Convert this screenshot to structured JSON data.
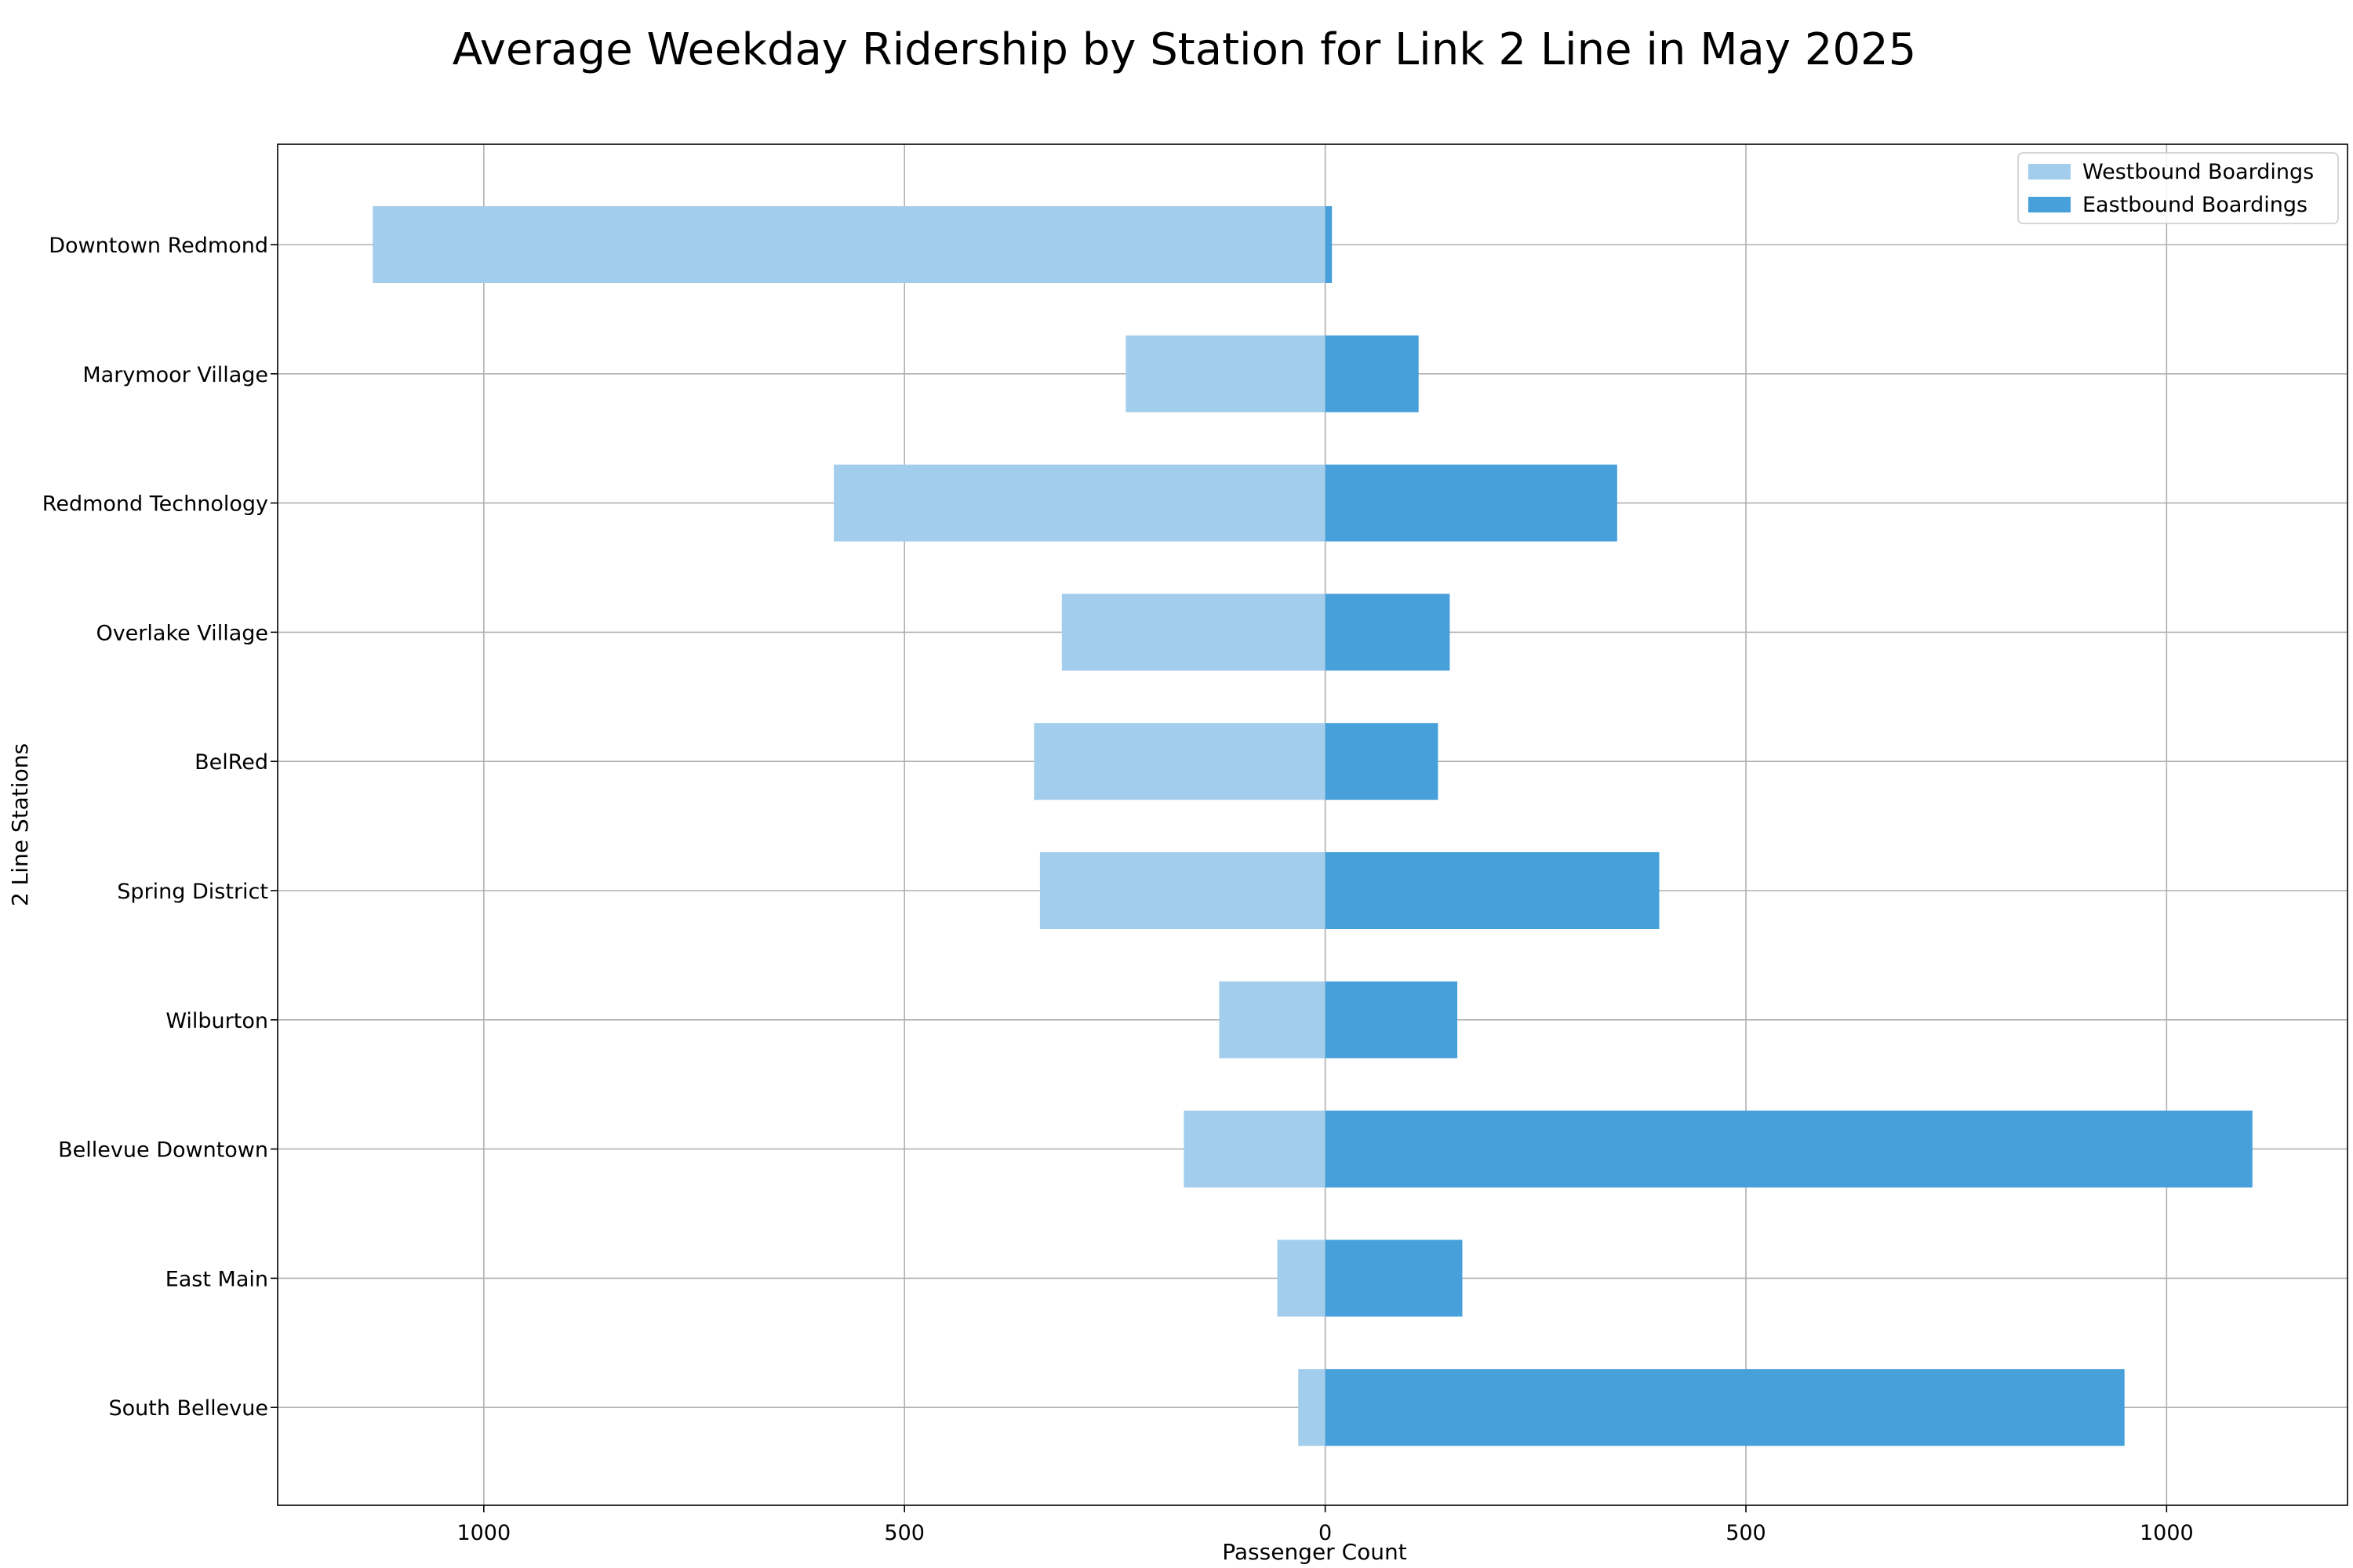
{
  "chart_data": {
    "type": "bar",
    "orientation": "horizontal-diverging",
    "title": "Average Weekday Ridership by Station for Link 2 Line in May 2025",
    "xlabel": "Passenger Count",
    "ylabel": "2 Line Stations",
    "xlim": [
      -1245,
      1215
    ],
    "xticks": [
      -1000,
      -500,
      0,
      500,
      1000
    ],
    "xtick_labels": [
      "1000",
      "500",
      "0",
      "500",
      "1000"
    ],
    "grid": true,
    "legend_position": "top-right",
    "categories": [
      "Downtown Redmond",
      "Marymoor Village",
      "Redmond Technology",
      "Overlake Village",
      "BelRed",
      "Spring District",
      "Wilburton",
      "Bellevue Downtown",
      "East Main",
      "South Bellevue"
    ],
    "series": [
      {
        "name": "Westbound Boardings",
        "color": "#a3cdec",
        "values": [
          1132,
          237,
          584,
          313,
          346,
          339,
          126,
          168,
          57,
          32
        ]
      },
      {
        "name": "Eastbound Boardings",
        "color": "#47a0da",
        "values": [
          8,
          111,
          347,
          148,
          134,
          397,
          157,
          1102,
          163,
          950
        ]
      }
    ]
  }
}
